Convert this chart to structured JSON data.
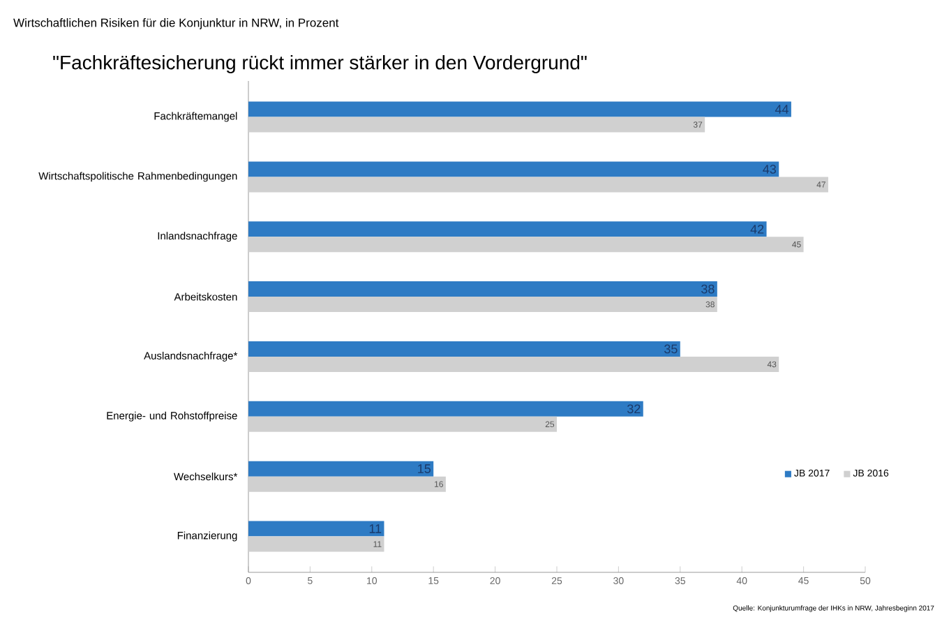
{
  "chart_data": {
    "type": "bar",
    "orientation": "horizontal",
    "title": "\"Fachkräftesicherung rückt immer stärker in den Vordergrund\"",
    "subtitle": "Wirtschaftlichen Risiken für die Konjunktur in NRW, in Prozent",
    "categories": [
      "Fachkräftemangel",
      "Wirtschaftspolitische Rahmenbedingungen",
      "Inlandsnachfrage",
      "Arbeitskosten",
      "Auslandsnachfrage*",
      "Energie- und Rohstoffpreise",
      "Wechselkurs*",
      "Finanzierung"
    ],
    "series": [
      {
        "name": "JB 2017",
        "color": "#2e7bc4",
        "values": [
          44,
          43,
          42,
          38,
          35,
          32,
          15,
          11
        ]
      },
      {
        "name": "JB 2016",
        "color": "#d0d0d0",
        "values": [
          37,
          47,
          45,
          38,
          43,
          25,
          16,
          11
        ]
      }
    ],
    "xlim": [
      0,
      50
    ],
    "xticks": [
      0,
      5,
      10,
      15,
      20,
      25,
      30,
      35,
      40,
      45,
      50
    ],
    "data_labels": true,
    "legend": "right",
    "grid": false,
    "annotations": [
      "Quelle: Konjunkturumfrage der IHKs in NRW, Jahresbeginn 2017"
    ]
  }
}
